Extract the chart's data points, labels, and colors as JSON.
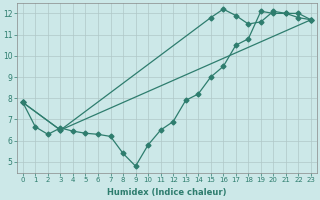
{
  "xlabel": "Humidex (Indice chaleur)",
  "xlim": [
    -0.5,
    23.5
  ],
  "ylim": [
    4.5,
    12.5
  ],
  "xticks": [
    0,
    1,
    2,
    3,
    4,
    5,
    6,
    7,
    8,
    9,
    10,
    11,
    12,
    13,
    14,
    15,
    16,
    17,
    18,
    19,
    20,
    21,
    22,
    23
  ],
  "yticks": [
    5,
    6,
    7,
    8,
    9,
    10,
    11,
    12
  ],
  "bg_color": "#cce8e8",
  "grid_color": "#b0c8c8",
  "line_color": "#2e7d6e",
  "line1_x": [
    0,
    1,
    2,
    3,
    4,
    5,
    6,
    7,
    8,
    9,
    10,
    11,
    12,
    13,
    14,
    15,
    16,
    17,
    18,
    19,
    20,
    21,
    22,
    23
  ],
  "line1_y": [
    7.8,
    6.65,
    6.3,
    6.6,
    6.45,
    6.35,
    6.3,
    6.2,
    5.4,
    4.8,
    5.8,
    6.5,
    6.9,
    7.9,
    8.2,
    9.0,
    9.5,
    10.5,
    10.8,
    12.1,
    12.0,
    12.0,
    11.8,
    11.7
  ],
  "line2_x": [
    0,
    3,
    23
  ],
  "line2_y": [
    7.8,
    6.5,
    11.7
  ],
  "line3_x": [
    0,
    3,
    15,
    16,
    17,
    18,
    19,
    20,
    21,
    22,
    23
  ],
  "line3_y": [
    7.8,
    6.5,
    11.8,
    12.2,
    11.9,
    11.5,
    11.6,
    12.1,
    12.0,
    12.0,
    11.7
  ]
}
